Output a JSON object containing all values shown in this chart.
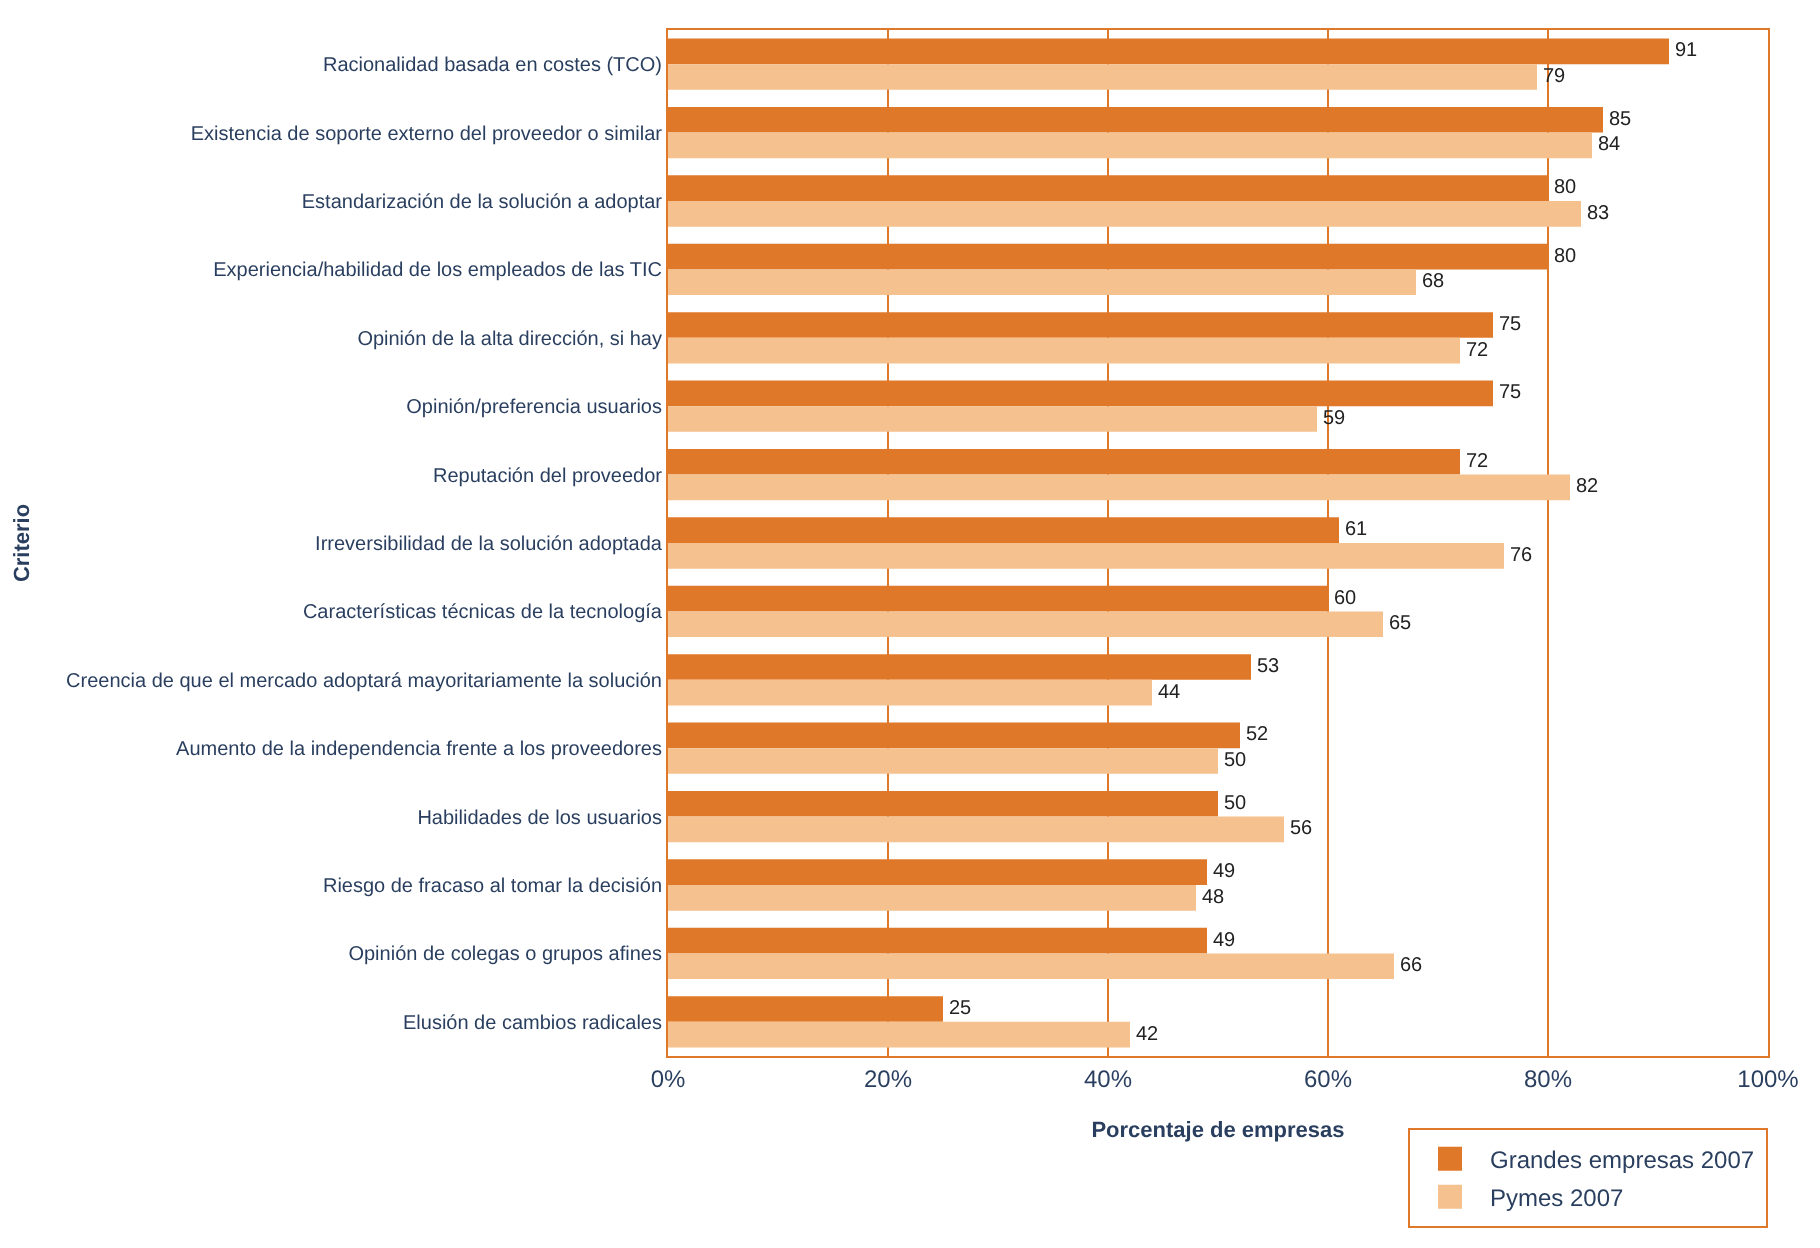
{
  "chart_data": {
    "type": "bar",
    "orientation": "horizontal",
    "categories": [
      "Racionalidad basada en costes (TCO)",
      "Existencia de soporte externo del proveedor o similar",
      "Estandarización de la solución a adoptar",
      "Experiencia/habilidad de los empleados de las TIC",
      "Opinión de la alta dirección, si hay",
      "Opinión/preferencia usuarios",
      "Reputación del proveedor",
      "Irreversibilidad de la solución adoptada",
      "Características técnicas de la tecnología",
      "Creencia de que el mercado adoptará mayoritariamente la solución",
      "Aumento de la independencia frente a los proveedores",
      "Habilidades de los usuarios",
      "Riesgo de fracaso al tomar la decisión",
      "Opinión de colegas o grupos afines",
      "Elusión de cambios radicales"
    ],
    "series": [
      {
        "name": "Grandes empresas 2007",
        "color": "#e0782a",
        "values": [
          91,
          85,
          80,
          80,
          75,
          75,
          72,
          61,
          60,
          53,
          52,
          50,
          49,
          49,
          25
        ]
      },
      {
        "name": "Pymes 2007",
        "color": "#f5c18e",
        "values": [
          79,
          84,
          83,
          68,
          72,
          59,
          82,
          76,
          65,
          44,
          50,
          56,
          48,
          66,
          42
        ]
      }
    ],
    "xlim": [
      0,
      100
    ],
    "xticks": [
      {
        "value": 0,
        "label": "0%"
      },
      {
        "value": 20,
        "label": "20%"
      },
      {
        "value": 40,
        "label": "40%"
      },
      {
        "value": 60,
        "label": "60%"
      },
      {
        "value": 80,
        "label": "80%"
      },
      {
        "value": 100,
        "label": "100%"
      }
    ],
    "xlabel": "Porcentaje de empresas",
    "ylabel": "Criterio",
    "data_labels": true,
    "grid": "x",
    "legend": "bottom right"
  }
}
